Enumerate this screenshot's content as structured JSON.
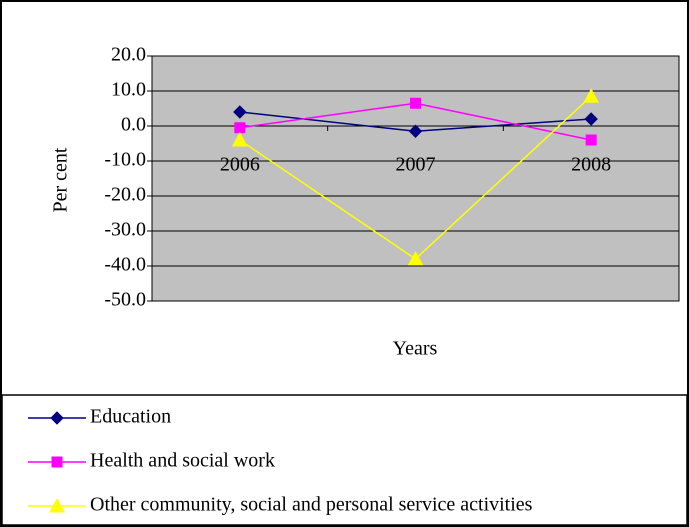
{
  "chart_data": {
    "type": "line",
    "x_label": "Years",
    "y_label": "Per cent",
    "categories": [
      "2006",
      "2007",
      "2008"
    ],
    "series": [
      {
        "name": "Education",
        "color": "#000080",
        "marker": "diamond",
        "values": [
          4.0,
          -1.5,
          2.0
        ]
      },
      {
        "name": "Health and social work",
        "color": "#ff00ff",
        "marker": "square",
        "values": [
          -0.5,
          6.5,
          -4.0
        ]
      },
      {
        "name": "Other community, social and personal service activities",
        "color": "#ffff00",
        "marker": "triangle",
        "values": [
          -4.0,
          -38.0,
          8.5
        ]
      }
    ],
    "ylim": [
      -50,
      20
    ],
    "yticks": [
      {
        "value": 20,
        "label": "20.0"
      },
      {
        "value": 10,
        "label": "10.0"
      },
      {
        "value": 0,
        "label": "0.0"
      },
      {
        "value": -10,
        "label": "-10.0"
      },
      {
        "value": -20,
        "label": "-20.0"
      },
      {
        "value": -30,
        "label": "-30.0"
      },
      {
        "value": -40,
        "label": "-40.0"
      },
      {
        "value": -50,
        "label": "-50.0"
      }
    ],
    "grid": true,
    "legend": "bottom",
    "plot_background": "#c0c0c0"
  }
}
